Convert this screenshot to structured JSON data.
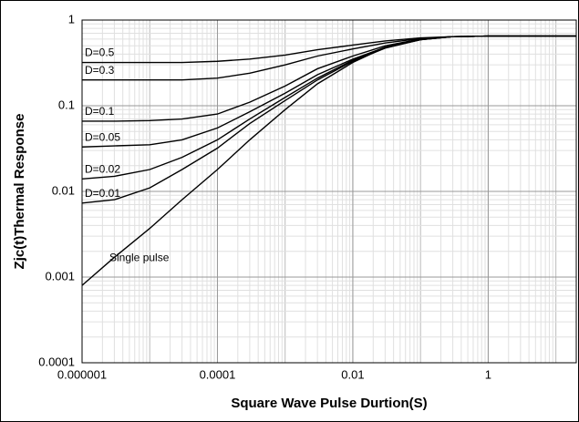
{
  "chart_data": {
    "type": "line",
    "xlabel": "Square Wave Pulse Durtion(S)",
    "ylabel": "Zjc(t)Thermal Response",
    "x": [
      1e-06,
      3e-06,
      1e-05,
      3e-05,
      0.0001,
      0.0003,
      0.001,
      0.003,
      0.01,
      0.03,
      0.1,
      0.3,
      1,
      3,
      10,
      20
    ],
    "series": [
      {
        "name": "D=0.5",
        "color": "#000000",
        "values": [
          0.32,
          0.32,
          0.32,
          0.32,
          0.33,
          0.35,
          0.39,
          0.45,
          0.51,
          0.57,
          0.62,
          0.64,
          0.65,
          0.65,
          0.65,
          0.65
        ]
      },
      {
        "name": "D=0.3",
        "color": "#000000",
        "values": [
          0.2,
          0.2,
          0.2,
          0.2,
          0.21,
          0.24,
          0.3,
          0.38,
          0.46,
          0.54,
          0.61,
          0.64,
          0.65,
          0.65,
          0.65,
          0.65
        ]
      },
      {
        "name": "D=0.1",
        "color": "#000000",
        "values": [
          0.066,
          0.066,
          0.067,
          0.07,
          0.08,
          0.11,
          0.17,
          0.27,
          0.38,
          0.5,
          0.6,
          0.64,
          0.65,
          0.65,
          0.65,
          0.65
        ]
      },
      {
        "name": "D=0.05",
        "color": "#000000",
        "values": [
          0.033,
          0.034,
          0.035,
          0.04,
          0.055,
          0.085,
          0.14,
          0.23,
          0.35,
          0.48,
          0.59,
          0.64,
          0.65,
          0.65,
          0.65,
          0.65
        ]
      },
      {
        "name": "D=0.02",
        "color": "#000000",
        "values": [
          0.014,
          0.015,
          0.018,
          0.025,
          0.04,
          0.07,
          0.125,
          0.21,
          0.34,
          0.48,
          0.59,
          0.64,
          0.65,
          0.65,
          0.65,
          0.65
        ]
      },
      {
        "name": "D=0.01",
        "color": "#000000",
        "values": [
          0.0073,
          0.008,
          0.011,
          0.018,
          0.032,
          0.062,
          0.115,
          0.2,
          0.33,
          0.47,
          0.59,
          0.64,
          0.65,
          0.65,
          0.65,
          0.65
        ]
      },
      {
        "name": "Single pulse",
        "color": "#000000",
        "values": [
          0.0008,
          0.0017,
          0.0037,
          0.008,
          0.018,
          0.04,
          0.09,
          0.18,
          0.32,
          0.48,
          0.6,
          0.64,
          0.65,
          0.65,
          0.65,
          0.65
        ]
      }
    ],
    "xlim": [
      1e-06,
      20
    ],
    "ylim": [
      0.0001,
      1
    ],
    "xticks": [
      1e-06,
      0.0001,
      0.01,
      1
    ],
    "yticks": [
      0.0001,
      0.001,
      0.01,
      0.1,
      1
    ],
    "xscale": "log",
    "yscale": "log",
    "grid": true
  }
}
